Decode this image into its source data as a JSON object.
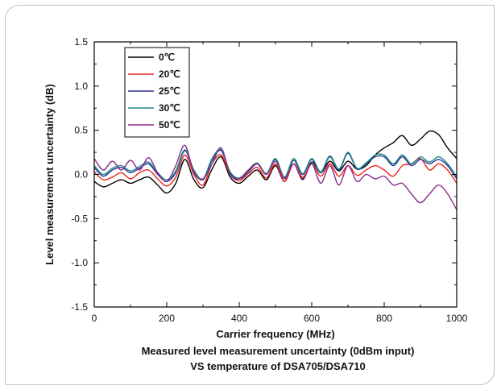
{
  "chart_data": {
    "type": "line",
    "xlabel": "Carrier frequency (MHz)",
    "ylabel": "Level measurement uncertainty (dB)",
    "caption_lines": [
      "Measured level measurement uncertainty (0dBm input)",
      "VS temperature of DSA705/DSA710"
    ],
    "xlim": [
      0,
      1000
    ],
    "ylim": [
      -1.5,
      1.5
    ],
    "x_ticks": [
      0,
      200,
      400,
      600,
      800,
      1000
    ],
    "y_ticks": [
      -1.5,
      -1.0,
      -0.5,
      0.0,
      0.5,
      1.0,
      1.5
    ],
    "x_tick_labels": [
      "0",
      "200",
      "400",
      "600",
      "800",
      "1000"
    ],
    "y_tick_labels": [
      "-1.5",
      "-1.0",
      "-0.5",
      "0.0",
      "0.5",
      "1.0",
      "1.5"
    ],
    "legend_position": "top-left",
    "grid": false,
    "x": [
      0,
      25,
      50,
      75,
      100,
      125,
      150,
      175,
      200,
      225,
      250,
      275,
      300,
      325,
      350,
      375,
      400,
      425,
      450,
      475,
      500,
      525,
      550,
      575,
      600,
      625,
      650,
      675,
      700,
      725,
      750,
      775,
      800,
      825,
      850,
      875,
      900,
      925,
      950,
      975,
      1000
    ],
    "series": [
      {
        "name": "0℃",
        "color": "#000000",
        "values": [
          -0.08,
          -0.14,
          -0.1,
          -0.06,
          -0.1,
          -0.06,
          -0.03,
          -0.12,
          -0.21,
          -0.1,
          0.17,
          -0.06,
          -0.15,
          0.06,
          0.2,
          -0.03,
          -0.1,
          -0.02,
          0.05,
          -0.06,
          0.1,
          -0.08,
          0.12,
          -0.05,
          0.14,
          0.02,
          0.15,
          0.04,
          0.15,
          0.06,
          0.1,
          0.22,
          0.3,
          0.36,
          0.44,
          0.33,
          0.4,
          0.49,
          0.45,
          0.3,
          0.18
        ]
      },
      {
        "name": "20℃",
        "color": "#e8251c",
        "values": [
          0.03,
          -0.06,
          -0.03,
          0.02,
          -0.05,
          0.02,
          0.05,
          -0.05,
          -0.13,
          -0.03,
          0.22,
          0.0,
          -0.12,
          0.12,
          0.22,
          0.0,
          -0.07,
          0.01,
          0.08,
          -0.04,
          0.12,
          -0.08,
          0.12,
          -0.03,
          0.12,
          -0.02,
          0.12,
          -0.02,
          0.1,
          -0.01,
          0.05,
          0.1,
          0.05,
          -0.02,
          0.1,
          0.12,
          0.18,
          0.05,
          0.12,
          0.05,
          -0.1
        ]
      },
      {
        "name": "25℃",
        "color": "#2b3196",
        "values": [
          0.08,
          -0.02,
          0.05,
          0.08,
          0.02,
          0.07,
          0.12,
          0.0,
          -0.08,
          0.02,
          0.27,
          0.04,
          -0.06,
          0.16,
          0.27,
          0.02,
          -0.05,
          0.03,
          0.12,
          0.0,
          0.17,
          -0.04,
          0.16,
          0.0,
          0.17,
          0.02,
          0.2,
          0.05,
          0.24,
          0.06,
          0.12,
          0.2,
          0.2,
          0.1,
          0.2,
          0.1,
          0.17,
          0.12,
          0.17,
          0.1,
          -0.05
        ]
      },
      {
        "name": "30℃",
        "color": "#1b8a88",
        "values": [
          0.1,
          0.0,
          0.07,
          0.1,
          0.04,
          0.09,
          0.14,
          0.02,
          -0.06,
          0.04,
          0.28,
          0.05,
          -0.05,
          0.18,
          0.28,
          0.03,
          -0.04,
          0.05,
          0.13,
          0.01,
          0.18,
          -0.03,
          0.18,
          0.01,
          0.18,
          0.03,
          0.21,
          0.06,
          0.25,
          0.07,
          0.13,
          0.22,
          0.22,
          0.12,
          0.22,
          0.12,
          0.2,
          0.14,
          0.2,
          0.12,
          -0.03
        ]
      },
      {
        "name": "50℃",
        "color": "#8b2c8c",
        "values": [
          0.18,
          0.05,
          0.15,
          0.05,
          0.16,
          0.05,
          0.19,
          0.02,
          -0.08,
          0.1,
          0.33,
          0.02,
          -0.05,
          0.12,
          0.3,
          0.0,
          -0.05,
          0.05,
          0.12,
          0.0,
          0.15,
          -0.05,
          0.12,
          -0.06,
          0.12,
          -0.1,
          0.1,
          -0.12,
          0.1,
          -0.08,
          0.0,
          -0.05,
          -0.02,
          -0.12,
          -0.1,
          -0.22,
          -0.32,
          -0.22,
          -0.12,
          -0.22,
          -0.4
        ]
      }
    ]
  }
}
